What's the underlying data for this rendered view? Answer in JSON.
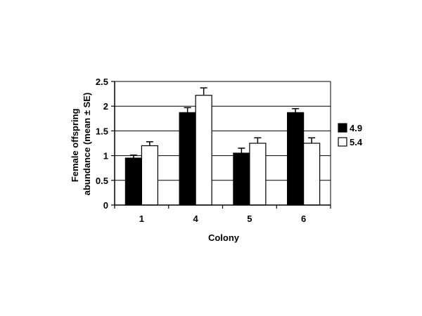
{
  "chart_data": {
    "type": "bar",
    "xlabel": "Colony",
    "ylabel_lines": [
      "Female offspring",
      "abundance (mean ± SE)"
    ],
    "categories": [
      "1",
      "4",
      "5",
      "6"
    ],
    "ylim": [
      0,
      2.5
    ],
    "yticks": [
      "0",
      "0.5",
      "1",
      "1.5",
      "2",
      "2.5"
    ],
    "grid": true,
    "legend_position": "right",
    "series": [
      {
        "name": "4.9",
        "color": "#000000",
        "values": [
          0.95,
          1.87,
          1.05,
          1.87
        ],
        "se": [
          0.06,
          0.1,
          0.1,
          0.08
        ]
      },
      {
        "name": "5.4",
        "color": "#ffffff",
        "values": [
          1.2,
          2.22,
          1.25,
          1.25
        ],
        "se": [
          0.08,
          0.15,
          0.11,
          0.11
        ]
      }
    ]
  }
}
